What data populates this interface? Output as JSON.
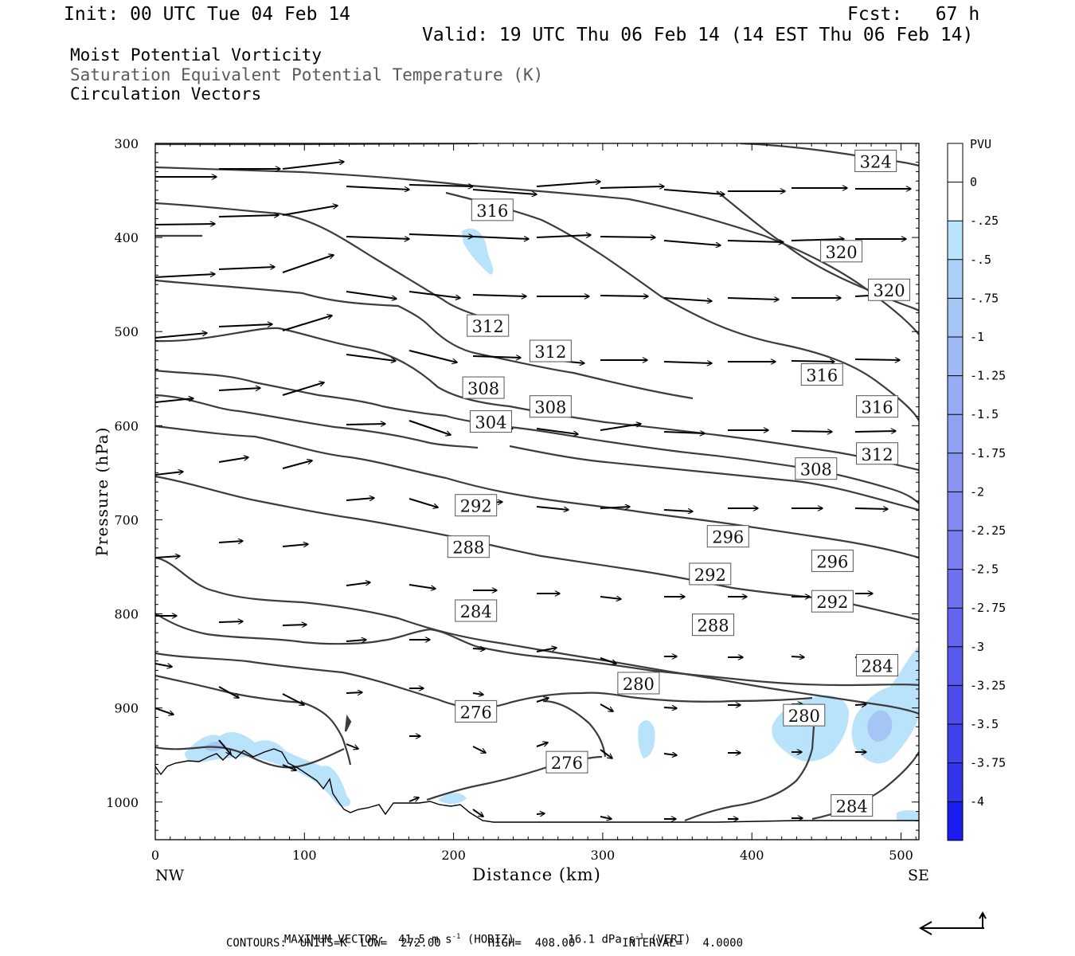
{
  "header": {
    "init": "Init: 00 UTC Tue 04 Feb 14",
    "fcst": "Fcst:   67 h",
    "valid": "Valid: 19 UTC Thu 06 Feb 14 (14 EST Thu 06 Feb 14)",
    "titles": [
      "Moist Potential Vorticity",
      "Saturation Equivalent Potential Temperature (K)",
      "Circulation Vectors"
    ]
  },
  "footer": {
    "max_vector_prefix": "MAXIMUM VECTOR:",
    "horiz_value": "41.5",
    "horiz_unit": "m s",
    "horiz_exp": "-1",
    "horiz_tag": "(HORIZ)",
    "vert_value": "16.1",
    "vert_unit": "dPa s",
    "vert_exp": "-1",
    "vert_tag": "(VERT)",
    "contours": "CONTOURS:  UNITS=K  LOW=  272.00       HIGH=  408.00       INTERVAL=   4.0000"
  },
  "colors": {
    "contour": "#3c3c3c",
    "vector": "#000000",
    "pv_fill_light": "#b8e2fb",
    "pv_fill_mid": "#9dc4f2"
  },
  "chart_data": {
    "type": "cross-section",
    "xlabel": "Distance (km)",
    "ylabel": "Pressure (hPa)",
    "xlim": [
      0,
      512
    ],
    "ylim": [
      1040,
      300
    ],
    "xticks": [
      0,
      100,
      200,
      300,
      400,
      500
    ],
    "yticks": [
      300,
      400,
      500,
      600,
      700,
      800,
      900,
      1000
    ],
    "x_end_labels": {
      "left": "NW",
      "right": "SE"
    },
    "colorbar": {
      "unit": "PVU",
      "labels": [
        "0",
        "-.25",
        "-.5",
        "-.75",
        "-1",
        "-1.25",
        "-1.5",
        "-1.75",
        "-2",
        "-2.25",
        "-2.5",
        "-2.75",
        "-3",
        "-3.25",
        "-3.5",
        "-3.75",
        "-4"
      ],
      "colors": [
        "#ffffff",
        "#ffffff",
        "#b9e2fb",
        "#acd1f8",
        "#a5c5f5",
        "#9eb9f4",
        "#97adf3",
        "#90a1f2",
        "#8995f1",
        "#8289f0",
        "#7b7df0",
        "#7071ef",
        "#6465ee",
        "#5859ed",
        "#4c4dec",
        "#3f41eb",
        "#3335ea",
        "#1a1cf0"
      ]
    },
    "contour_labels": [
      {
        "text": "324",
        "x": 483,
        "p": 319
      },
      {
        "text": "316",
        "x": 226,
        "p": 371
      },
      {
        "text": "320",
        "x": 460,
        "p": 415
      },
      {
        "text": "320",
        "x": 492,
        "p": 456
      },
      {
        "text": "312",
        "x": 223,
        "p": 494
      },
      {
        "text": "312",
        "x": 265,
        "p": 521
      },
      {
        "text": "316",
        "x": 447,
        "p": 546
      },
      {
        "text": "316",
        "x": 484,
        "p": 580
      },
      {
        "text": "308",
        "x": 220,
        "p": 560
      },
      {
        "text": "308",
        "x": 265,
        "p": 580
      },
      {
        "text": "304",
        "x": 225,
        "p": 596
      },
      {
        "text": "312",
        "x": 484,
        "p": 630
      },
      {
        "text": "308",
        "x": 443,
        "p": 646
      },
      {
        "text": "292",
        "x": 215,
        "p": 685
      },
      {
        "text": "296",
        "x": 384,
        "p": 718
      },
      {
        "text": "288",
        "x": 210,
        "p": 729
      },
      {
        "text": "296",
        "x": 454,
        "p": 744
      },
      {
        "text": "292",
        "x": 372,
        "p": 758
      },
      {
        "text": "292",
        "x": 454,
        "p": 787
      },
      {
        "text": "284",
        "x": 215,
        "p": 797
      },
      {
        "text": "288",
        "x": 374,
        "p": 812
      },
      {
        "text": "284",
        "x": 484,
        "p": 855
      },
      {
        "text": "280",
        "x": 324,
        "p": 874
      },
      {
        "text": "276",
        "x": 215,
        "p": 904
      },
      {
        "text": "280",
        "x": 435,
        "p": 908
      },
      {
        "text": "276",
        "x": 276,
        "p": 958
      },
      {
        "text": "284",
        "x": 467,
        "p": 1004
      }
    ]
  }
}
